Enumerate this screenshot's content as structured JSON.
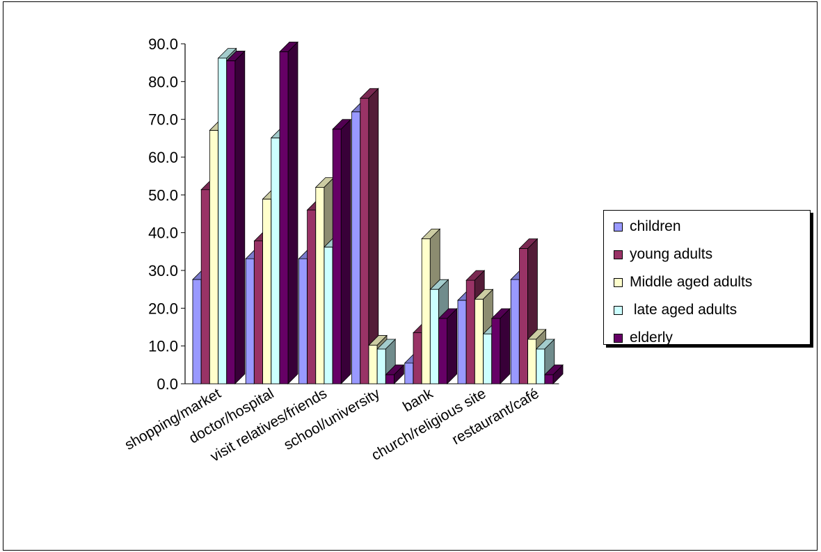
{
  "chart_data": {
    "type": "bar",
    "subtype": "3d-clustered-column",
    "categories": [
      "shopping/market",
      "doctor/hospital",
      "visit relatives/friends",
      "school/university",
      "bank",
      "church/religious site",
      "restaurant/café"
    ],
    "series": [
      {
        "name": "children",
        "color": "#9999ff",
        "values": [
          27.6,
          33.1,
          33.1,
          72.0,
          5.5,
          22.1,
          27.6
        ]
      },
      {
        "name": "young adults",
        "color": "#993366",
        "values": [
          51.4,
          37.8,
          46.0,
          75.6,
          13.5,
          27.4,
          35.8
        ]
      },
      {
        "name": "Middle aged adults",
        "color": "#ffffcc",
        "values": [
          67.1,
          48.9,
          52.0,
          10.2,
          38.4,
          22.4,
          11.8
        ]
      },
      {
        "name": " late aged adults",
        "color": "#ccffff",
        "values": [
          86.2,
          65.1,
          36.2,
          9.2,
          25.0,
          13.2,
          9.2
        ]
      },
      {
        "name": "elderly",
        "color": "#660066",
        "values": [
          85.5,
          87.9,
          67.4,
          2.4,
          17.3,
          17.3,
          2.4
        ]
      }
    ],
    "ylim": [
      0,
      90
    ],
    "yticks": [
      "0.0",
      "10.0",
      "20.0",
      "30.0",
      "40.0",
      "50.0",
      "60.0",
      "70.0",
      "80.0",
      "90.0"
    ],
    "title": "",
    "xlabel": "",
    "ylabel": "",
    "legend_position": "right",
    "grid": false
  }
}
